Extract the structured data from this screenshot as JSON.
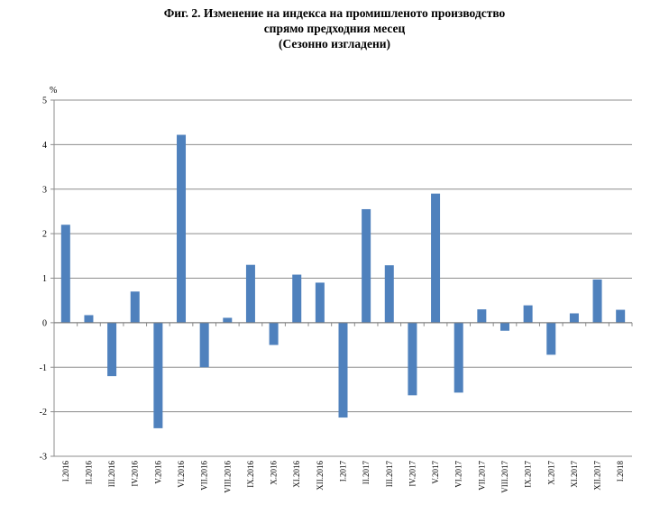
{
  "title": {
    "line1": "Фиг. 2. Изменение на индекса на промишленото производство",
    "line2": "спрямо предходния месец",
    "line3": "(Сезонно изгладени)"
  },
  "chart_data": {
    "type": "bar",
    "title": "Фиг. 2. Изменение на индекса на промишленото производство спрямо предходния месец (Сезонно изгладени)",
    "ylabel": "%",
    "xlabel": "",
    "ylim": [
      -3,
      5
    ],
    "yticks": [
      "5",
      "4",
      "3",
      "2",
      "1",
      "0",
      "-1",
      "-2",
      "-3"
    ],
    "grid": true,
    "legend": "none",
    "bar_color": "#4f81bd",
    "categories": [
      "I.2016",
      "II.2016",
      "III.2016",
      "IV.2016",
      "V.2016",
      "VI.2016",
      "VII.2016",
      "VIII.2016",
      "IX.2016",
      "X.2016",
      "XI.2016",
      "XII.2016",
      "I.2017",
      "II.2017",
      "III.2017",
      "IV.2017",
      "V.2017",
      "VI.2017",
      "VII.2017",
      "VIII.2017",
      "IX.2017",
      "X.2017",
      "XI.2017",
      "XII.2017",
      "I.2018"
    ],
    "values": [
      2.2,
      0.17,
      -1.2,
      0.7,
      -2.37,
      4.22,
      -1.0,
      0.11,
      1.3,
      -0.5,
      1.08,
      0.9,
      -2.13,
      2.55,
      1.29,
      -1.63,
      2.9,
      -1.57,
      0.3,
      -0.18,
      0.39,
      -0.72,
      0.21,
      0.97,
      0.29
    ]
  }
}
